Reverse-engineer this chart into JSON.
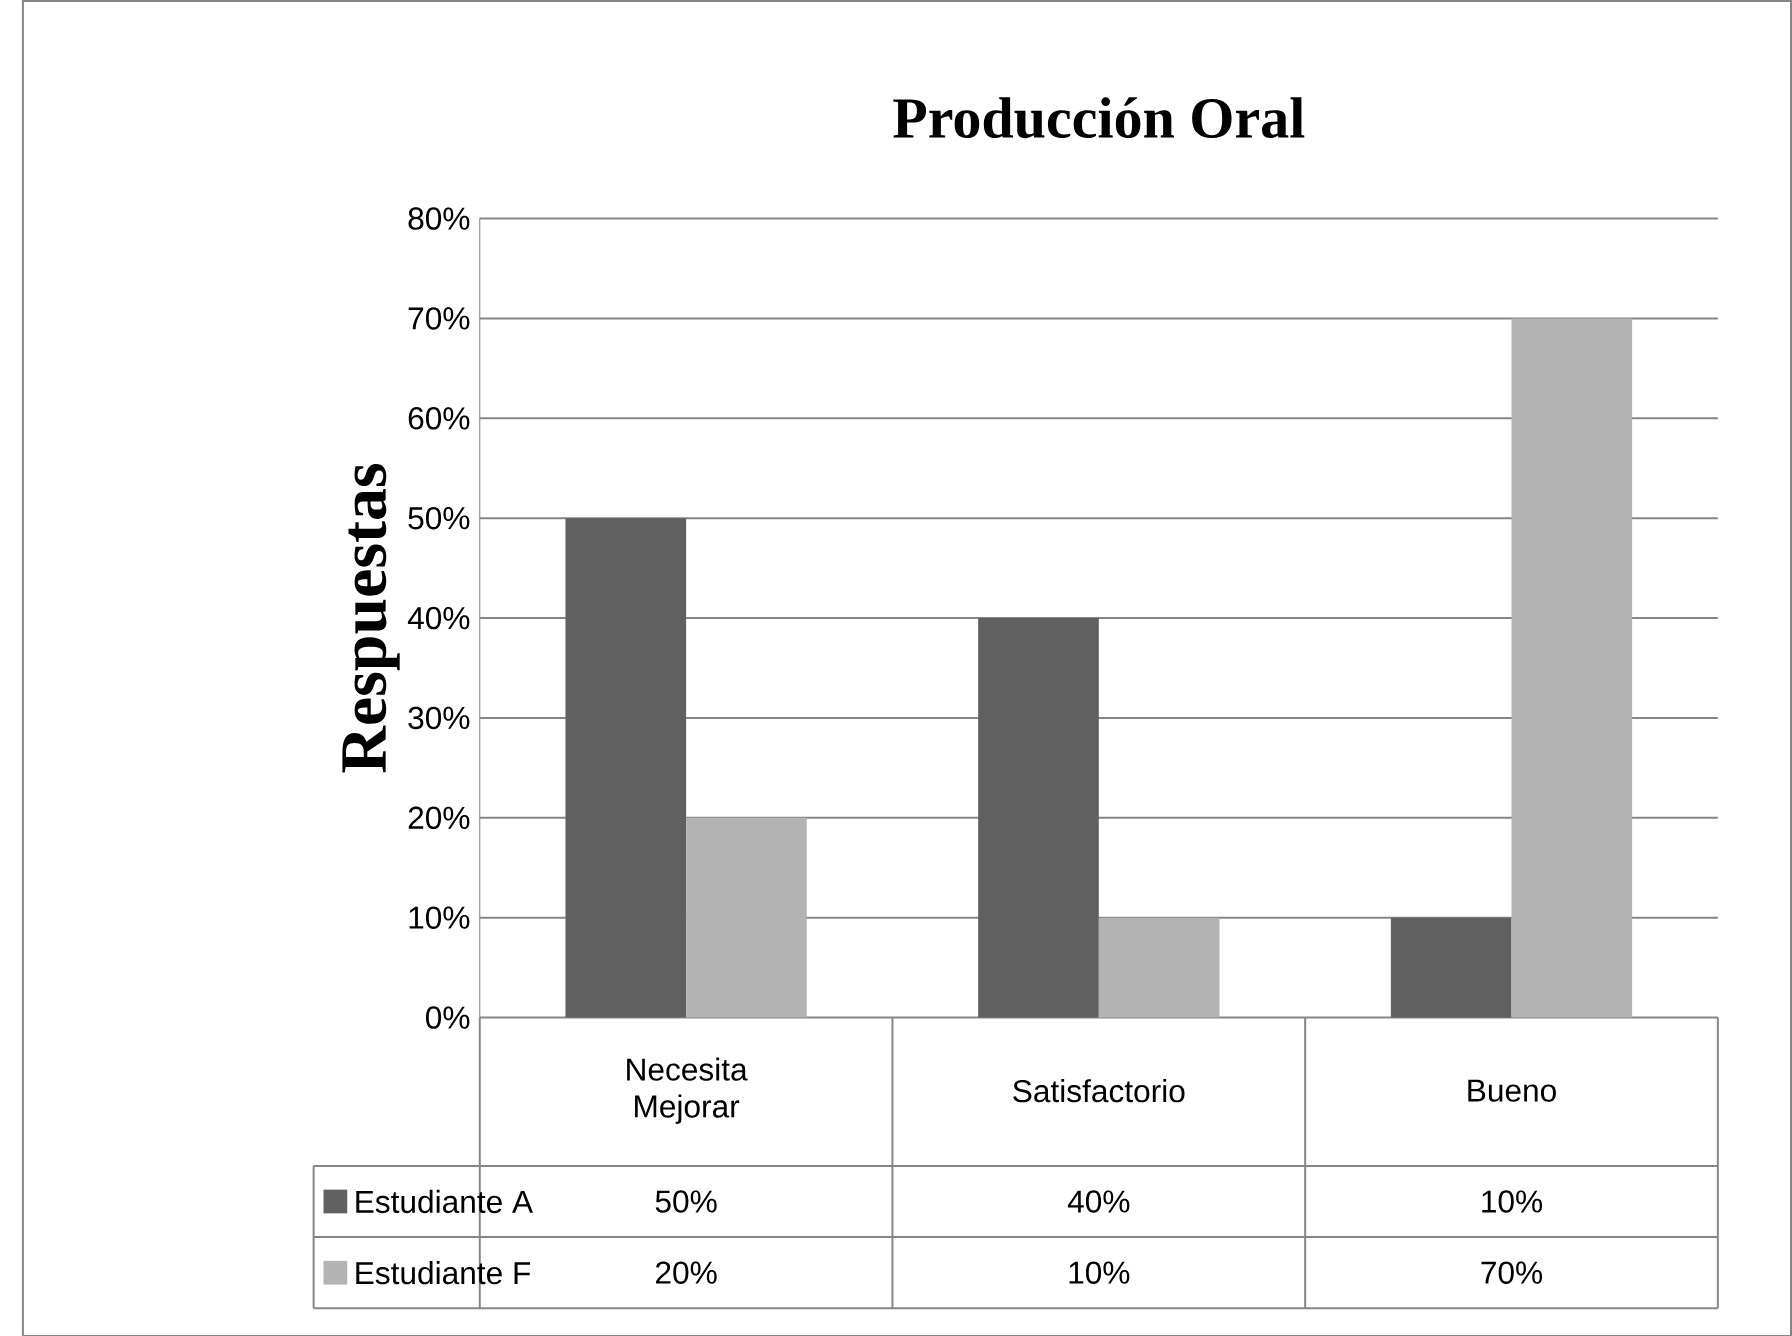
{
  "chart_data": {
    "type": "bar",
    "title": "Producción Oral",
    "ylabel": "Respuestas",
    "categories": [
      "Necesita Mejorar",
      "Satisfactorio",
      "Bueno"
    ],
    "series": [
      {
        "name": "Estudiante A",
        "color": "#606060",
        "values": [
          50,
          40,
          10
        ],
        "value_labels": [
          "50%",
          "40%",
          "10%"
        ]
      },
      {
        "name": "Estudiante F",
        "color": "#b3b3b3",
        "values": [
          20,
          10,
          70
        ],
        "value_labels": [
          "20%",
          "10%",
          "70%"
        ]
      }
    ],
    "ylim": [
      0,
      80
    ],
    "yticks": [
      {
        "value": 0,
        "label": "0%"
      },
      {
        "value": 10,
        "label": "10%"
      },
      {
        "value": 20,
        "label": "20%"
      },
      {
        "value": 30,
        "label": "30%"
      },
      {
        "value": 40,
        "label": "40%"
      },
      {
        "value": 50,
        "label": "50%"
      },
      {
        "value": 60,
        "label": "60%"
      },
      {
        "value": 70,
        "label": "70%"
      },
      {
        "value": 80,
        "label": "80%"
      }
    ],
    "grid": "y",
    "legend": "bottom"
  }
}
